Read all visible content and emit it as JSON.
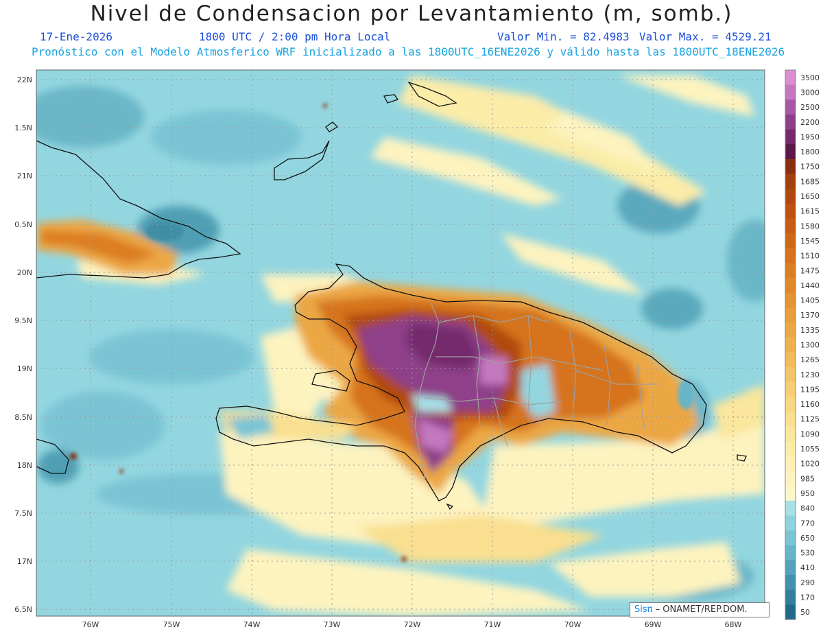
{
  "header": {
    "title": "Nivel de Condensacion por Levantamiento (m, somb.)",
    "date": "17-Ene-2026",
    "time": "1800 UTC / 2:00 pm Hora Local",
    "min_label": "Valor Min. = 82.4983",
    "max_label": "Valor Max. = 4529.21",
    "model_line": "Pronóstico con el Modelo Atmosferico WRF inicializado a las 1800UTC_16ENE2026 y válido hasta las 1800UTC_18ENE2026"
  },
  "axes": {
    "lon_labels": [
      "76W",
      "75W",
      "74W",
      "73W",
      "72W",
      "71W",
      "70W",
      "69W",
      "68W"
    ],
    "lat_labels": [
      "22N",
      "1.5N",
      "21N",
      "0.5N",
      "20N",
      "9.5N",
      "19N",
      "8.5N",
      "18N",
      "7.5N",
      "17N",
      "6.5N"
    ]
  },
  "colorbar": {
    "levels": [
      "3500",
      "3000",
      "2500",
      "2200",
      "1950",
      "1800",
      "1750",
      "1685",
      "1650",
      "1615",
      "1580",
      "1545",
      "1510",
      "1475",
      "1440",
      "1405",
      "1370",
      "1335",
      "1300",
      "1265",
      "1230",
      "1195",
      "1160",
      "1125",
      "1090",
      "1055",
      "1020",
      "985",
      "950",
      "840",
      "770",
      "650",
      "530",
      "410",
      "290",
      "170",
      "50"
    ],
    "colors": [
      "#d98fd0",
      "#c478bf",
      "#a65aa3",
      "#8e3f88",
      "#74296d",
      "#5b1748",
      "#8a2f10",
      "#a3400e",
      "#b1480f",
      "#bd520f",
      "#c65d12",
      "#cf6816",
      "#d6731b",
      "#dc7e21",
      "#e18928",
      "#e59432",
      "#e99e3b",
      "#eca745",
      "#efb14f",
      "#f2bb5b",
      "#f4c567",
      "#f6cf74",
      "#f8d781",
      "#f9df8f",
      "#fae69c",
      "#fbeca8",
      "#fcf0b4",
      "#fdf3bf",
      "#fdf6c9",
      "#a8e0e8",
      "#8fd2df",
      "#7ac4d4",
      "#66b5c8",
      "#52a4ba",
      "#4192ab",
      "#31809b",
      "#1f6b86"
    ]
  },
  "credit": {
    "sis": "Sisπ",
    "text": " – ONAMET/REP.DOM."
  }
}
